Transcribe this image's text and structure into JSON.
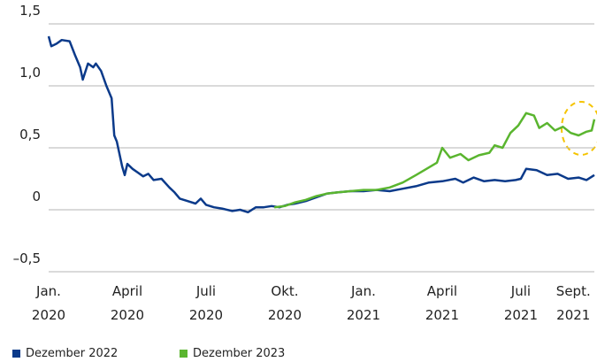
{
  "chart_data": {
    "type": "line",
    "xlim": [
      0,
      20.8
    ],
    "xticks": [
      {
        "value": 0,
        "label": "Jan. 2020"
      },
      {
        "value": 3,
        "label": "April 2020"
      },
      {
        "value": 6,
        "label": "Juli 2020"
      },
      {
        "value": 9,
        "label": "Okt. 2020"
      },
      {
        "value": 12,
        "label": "Jan. 2021"
      },
      {
        "value": 15,
        "label": "April 2021"
      },
      {
        "value": 18,
        "label": "Juli 2021"
      },
      {
        "value": 20,
        "label": "Sept. 2021"
      }
    ],
    "ylim": [
      -0.5,
      1.5
    ],
    "yticks": [
      {
        "value": 1.5,
        "label": "1,5"
      },
      {
        "value": 1.0,
        "label": "1,0"
      },
      {
        "value": 0.5,
        "label": "0,5"
      },
      0,
      {
        "value": -0.5,
        "label": "–0,5"
      }
    ],
    "grid": true,
    "series": [
      {
        "name": "Dezember 2022",
        "color": "#0b3a8a",
        "x": [
          0,
          0.1,
          0.3,
          0.5,
          0.8,
          1.0,
          1.2,
          1.3,
          1.5,
          1.7,
          1.8,
          2.0,
          2.2,
          2.4,
          2.5,
          2.6,
          2.7,
          2.8,
          2.9,
          3.0,
          3.2,
          3.4,
          3.6,
          3.8,
          4.0,
          4.3,
          4.6,
          4.8,
          5.0,
          5.3,
          5.6,
          5.8,
          6.0,
          6.3,
          6.6,
          7.0,
          7.3,
          7.6,
          7.9,
          8.2,
          8.5,
          8.8,
          9.1,
          9.4,
          9.8,
          10.2,
          10.6,
          11.0,
          11.5,
          12.0,
          12.5,
          13.0,
          13.5,
          14.0,
          14.5,
          15.0,
          15.5,
          15.8,
          16.2,
          16.6,
          17.0,
          17.4,
          17.8,
          18.0,
          18.2,
          18.6,
          19.0,
          19.4,
          19.8,
          20.2,
          20.5,
          20.8
        ],
        "values": [
          1.4,
          1.32,
          1.34,
          1.37,
          1.36,
          1.25,
          1.15,
          1.05,
          1.18,
          1.15,
          1.18,
          1.12,
          1.0,
          0.9,
          0.6,
          0.55,
          0.45,
          0.35,
          0.28,
          0.37,
          0.33,
          0.3,
          0.27,
          0.29,
          0.24,
          0.25,
          0.18,
          0.14,
          0.09,
          0.07,
          0.05,
          0.09,
          0.04,
          0.02,
          0.01,
          -0.01,
          0.0,
          -0.02,
          0.02,
          0.02,
          0.03,
          0.02,
          0.04,
          0.05,
          0.07,
          0.1,
          0.13,
          0.14,
          0.15,
          0.15,
          0.16,
          0.15,
          0.17,
          0.19,
          0.22,
          0.23,
          0.25,
          0.22,
          0.26,
          0.23,
          0.24,
          0.23,
          0.24,
          0.25,
          0.33,
          0.32,
          0.28,
          0.29,
          0.25,
          0.26,
          0.24,
          0.28
        ]
      },
      {
        "name": "Dezember 2023",
        "color": "#5ab52f",
        "x": [
          8.6,
          9.0,
          9.4,
          9.8,
          10.2,
          10.6,
          11.0,
          11.5,
          12.0,
          12.5,
          13.0,
          13.5,
          14.0,
          14.4,
          14.8,
          15.0,
          15.3,
          15.7,
          16.0,
          16.4,
          16.8,
          17.0,
          17.3,
          17.6,
          17.9,
          18.2,
          18.5,
          18.7,
          19.0,
          19.3,
          19.6,
          19.9,
          20.2,
          20.5,
          20.7,
          20.8
        ],
        "values": [
          0.02,
          0.03,
          0.06,
          0.08,
          0.11,
          0.13,
          0.14,
          0.15,
          0.16,
          0.16,
          0.18,
          0.22,
          0.28,
          0.33,
          0.38,
          0.5,
          0.42,
          0.45,
          0.4,
          0.44,
          0.46,
          0.52,
          0.5,
          0.62,
          0.68,
          0.78,
          0.76,
          0.66,
          0.7,
          0.64,
          0.67,
          0.62,
          0.6,
          0.63,
          0.64,
          0.73
        ]
      }
    ]
  }
}
